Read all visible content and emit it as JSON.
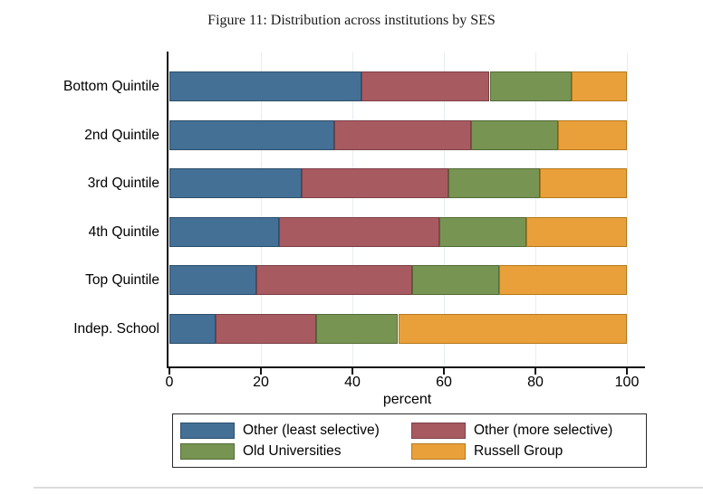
{
  "chart_data": {
    "type": "bar",
    "orientation": "horizontal",
    "stacked": true,
    "title": "Figure 11: Distribution across institutions by SES",
    "categories": [
      "Bottom Quintile",
      "2nd Quintile",
      "3rd Quintile",
      "4th Quintile",
      "Top Quintile",
      "Indep. School"
    ],
    "series": [
      {
        "name": "Other (least selective)",
        "color": "#447096",
        "border_color": "#2d4f6c",
        "values": [
          42,
          36,
          29,
          24,
          19,
          10
        ]
      },
      {
        "name": "Other (more selective)",
        "color": "#a85a61",
        "border_color": "#7c4046",
        "values": [
          28,
          30,
          32,
          35,
          34,
          22
        ]
      },
      {
        "name": "Old Universities",
        "color": "#789453",
        "border_color": "#526c36",
        "values": [
          18,
          19,
          20,
          19,
          19,
          18
        ]
      },
      {
        "name": "Russell Group",
        "color": "#e9a03b",
        "border_color": "#b5791c",
        "values": [
          12,
          15,
          19,
          22,
          28,
          50
        ]
      }
    ],
    "xlabel": "percent",
    "xlim": [
      0,
      100
    ],
    "xticks": [
      0,
      20,
      40,
      60,
      80,
      100
    ],
    "grid": true,
    "legend_position": "bottom"
  }
}
